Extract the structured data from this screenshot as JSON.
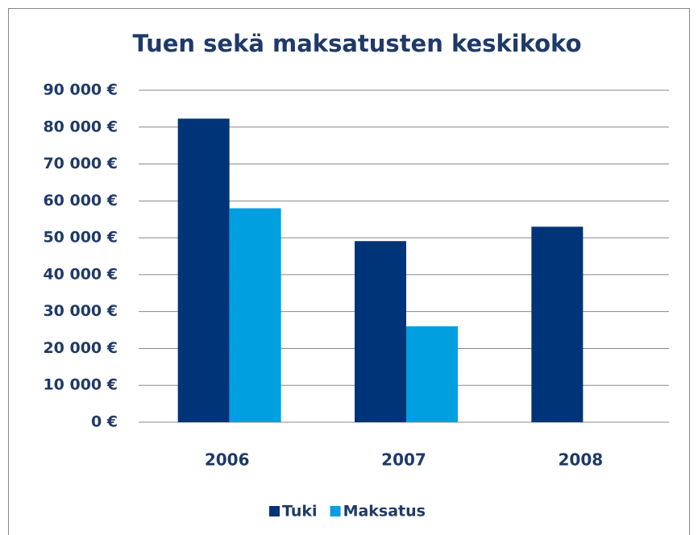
{
  "chart_data": {
    "type": "bar",
    "title": "Tuen sekä maksatusten keskikoko",
    "categories": [
      "2006",
      "2007",
      "2008"
    ],
    "series": [
      {
        "name": "Tuki",
        "color": "#003478",
        "values": [
          82300,
          49100,
          53000
        ]
      },
      {
        "name": "Maksatus",
        "color": "#00a0e0",
        "values": [
          58000,
          26000,
          null
        ]
      }
    ],
    "ylim": [
      0,
      90000
    ],
    "yticks": [
      {
        "value": 0,
        "label": "0 €"
      },
      {
        "value": 10000,
        "label": "10 000 €"
      },
      {
        "value": 20000,
        "label": "20 000 €"
      },
      {
        "value": 30000,
        "label": "30 000 €"
      },
      {
        "value": 40000,
        "label": "40 000 €"
      },
      {
        "value": 50000,
        "label": "50 000 €"
      },
      {
        "value": 60000,
        "label": "60 000 €"
      },
      {
        "value": 70000,
        "label": "70 000 €"
      },
      {
        "value": 80000,
        "label": "80 000 €"
      },
      {
        "value": 90000,
        "label": "90 000 €"
      }
    ],
    "grid": true,
    "legend": "bottom"
  }
}
